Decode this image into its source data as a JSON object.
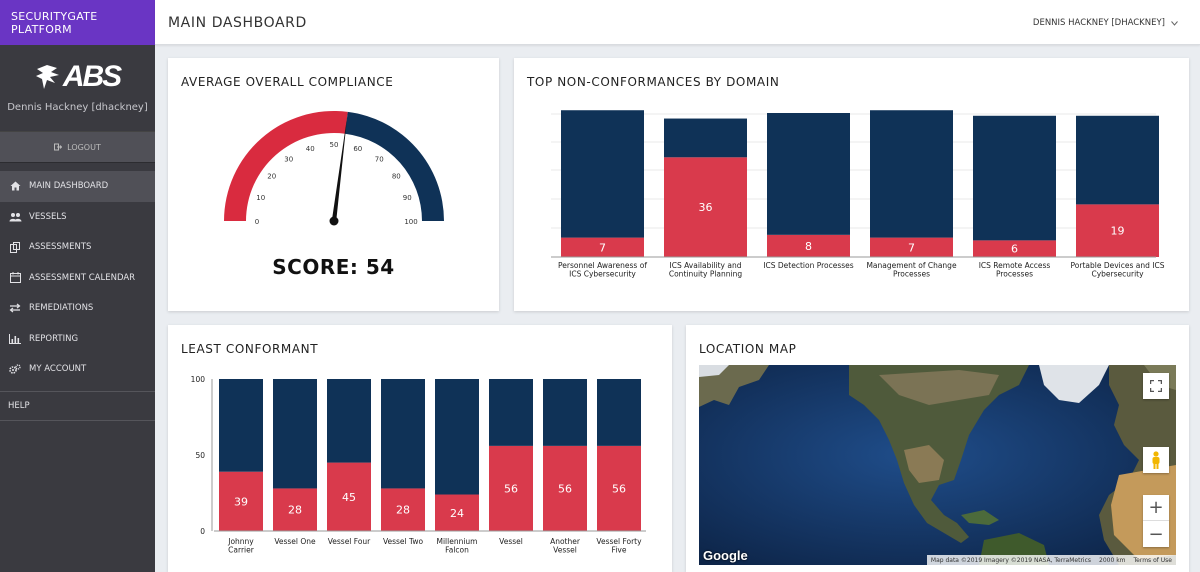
{
  "app": {
    "brand": "SECURITYGATE PLATFORM",
    "logo_text": "ABS",
    "user_name": "Dennis Hackney [dhackney]",
    "logout_label": "LOGOUT"
  },
  "nav": [
    {
      "label": "MAIN DASHBOARD",
      "icon": "home-icon"
    },
    {
      "label": "VESSELS",
      "icon": "users-icon"
    },
    {
      "label": "ASSESSMENTS",
      "icon": "copy-icon"
    },
    {
      "label": "ASSESSMENT CALENDAR",
      "icon": "calendar-icon"
    },
    {
      "label": "REMEDIATIONS",
      "icon": "exchange-icon"
    },
    {
      "label": "REPORTING",
      "icon": "bar-chart-icon"
    },
    {
      "label": "MY ACCOUNT",
      "icon": "gears-icon"
    },
    {
      "label": "HELP",
      "icon": ""
    }
  ],
  "header": {
    "title": "MAIN DASHBOARD",
    "user_menu": "DENNIS HACKNEY [DHACKNEY]"
  },
  "compliance": {
    "title": "AVERAGE OVERALL COMPLIANCE",
    "score_label": "SCORE: 54",
    "score": 54,
    "ticks": [
      "0",
      "10",
      "20",
      "30",
      "40",
      "50",
      "60",
      "70",
      "80",
      "90",
      "100"
    ],
    "colors": {
      "low": "#d92b3f",
      "high": "#0f3257"
    }
  },
  "nonconformances": {
    "title": "TOP NON-CONFORMANCES BY DOMAIN",
    "chart_data": {
      "type": "bar",
      "categories": [
        "Personnel Awareness of ICS Cybersecurity",
        "ICS Availability and Continuity Planning",
        "ICS Detection Processes",
        "Management of Change Processes",
        "ICS Remote Access Processes",
        "Portable Devices and ICS Cybersecurity"
      ],
      "series": [
        {
          "values": [
            7,
            36,
            8,
            7,
            6,
            19
          ],
          "color": "#d93a4c"
        },
        {
          "values": [
            46,
            14,
            44,
            46,
            45,
            32
          ],
          "color": "#0f3257"
        }
      ],
      "labels": [
        "7",
        "36",
        "8",
        "7",
        "6",
        "19"
      ],
      "ylim": [
        0,
        52
      ]
    }
  },
  "least": {
    "title": "LEAST CONFORMANT",
    "chart_data": {
      "type": "bar",
      "categories": [
        "Johnny Carrier",
        "Vessel One",
        "Vessel Four",
        "Vessel Two",
        "Millennium Falcon",
        "Vessel",
        "Another Vessel",
        "Vessel Forty Five"
      ],
      "series": [
        {
          "values": [
            39,
            28,
            45,
            28,
            24,
            56,
            56,
            56
          ],
          "color": "#d93a4c"
        },
        {
          "values": [
            61,
            72,
            55,
            72,
            76,
            44,
            44,
            44
          ],
          "color": "#0f3257"
        }
      ],
      "labels": [
        "39",
        "28",
        "45",
        "28",
        "24",
        "56",
        "56",
        "56"
      ],
      "y_ticks": [
        "100",
        "50",
        "0"
      ],
      "ylim": [
        0,
        100
      ]
    }
  },
  "map": {
    "title": "LOCATION MAP",
    "google_label": "Google",
    "attribution": "Map data ©2019 Imagery ©2019 NASA, TerraMetrics",
    "scale_label": "2000 km",
    "terms": "Terms of Use",
    "zoom_in": "+",
    "zoom_out": "−"
  }
}
